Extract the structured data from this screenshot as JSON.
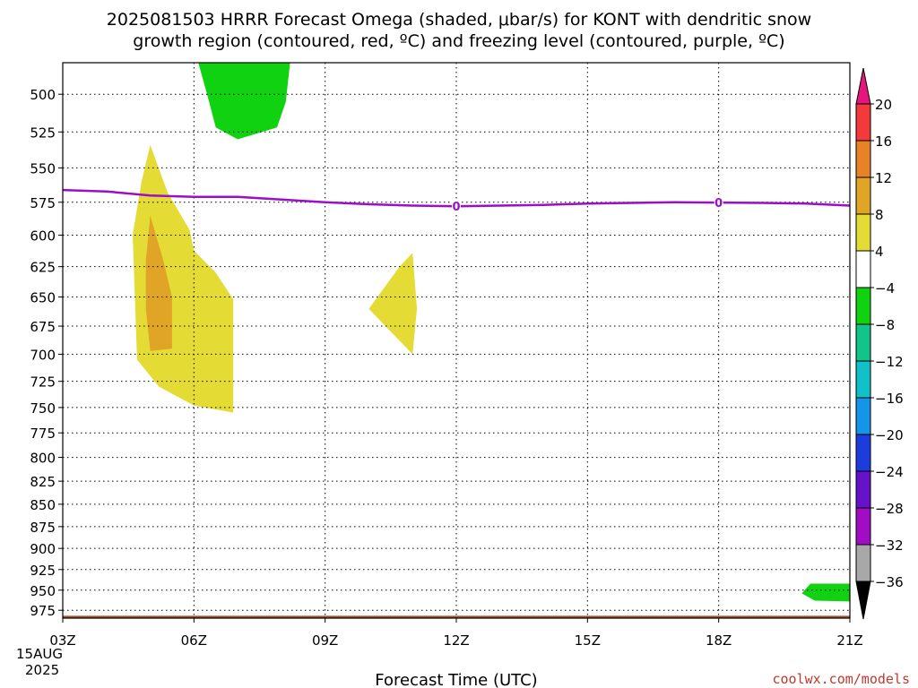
{
  "chart_data": {
    "type": "heatmap",
    "title_line1": "2025081503 HRRR Forecast Omega (shaded, μbar/s) for KONT with dendritic snow",
    "title_line2": "growth region (contoured, red, ºC) and freezing level (contoured, purple, ºC)",
    "xlabel": "Forecast Time (UTC)",
    "x_start_date_day": "15AUG",
    "x_start_date_year": "2025",
    "x_ticks": [
      "03Z",
      "06Z",
      "09Z",
      "12Z",
      "15Z",
      "18Z",
      "21Z"
    ],
    "x_hours": [
      3,
      6,
      9,
      12,
      15,
      18,
      21
    ],
    "xlim": [
      3,
      21
    ],
    "y_ticks": [
      500,
      525,
      550,
      575,
      600,
      625,
      650,
      675,
      700,
      725,
      750,
      775,
      800,
      825,
      850,
      875,
      900,
      925,
      950,
      975
    ],
    "ylim": [
      480,
      985
    ],
    "y_scale": "log",
    "grid": true,
    "colorbar": {
      "labels": [
        "20",
        "16",
        "12",
        "8",
        "4",
        "−4",
        "−8",
        "−12",
        "−16",
        "−20",
        "−24",
        "−28",
        "−32",
        "−36"
      ],
      "bands": [
        {
          "lo": 20,
          "hi": null,
          "color": "#e6157e"
        },
        {
          "lo": 16,
          "hi": 20,
          "color": "#f23a3a"
        },
        {
          "lo": 12,
          "hi": 16,
          "color": "#e88227"
        },
        {
          "lo": 8,
          "hi": 12,
          "color": "#e0a526"
        },
        {
          "lo": 4,
          "hi": 8,
          "color": "#e4dc35"
        },
        {
          "lo": -4,
          "hi": 4,
          "color": "#ffffff"
        },
        {
          "lo": -8,
          "hi": -4,
          "color": "#11d211"
        },
        {
          "lo": -12,
          "hi": -8,
          "color": "#13c48a"
        },
        {
          "lo": -16,
          "hi": -12,
          "color": "#11c0c8"
        },
        {
          "lo": -20,
          "hi": -16,
          "color": "#1595e8"
        },
        {
          "lo": -24,
          "hi": -20,
          "color": "#1e3bdc"
        },
        {
          "lo": -28,
          "hi": -24,
          "color": "#6512c9"
        },
        {
          "lo": -32,
          "hi": -28,
          "color": "#a00dc4"
        },
        {
          "lo": -36,
          "hi": -32,
          "color": "#a8a8a8"
        },
        {
          "lo": null,
          "hi": -36,
          "color": "#000000"
        }
      ]
    },
    "shaded_regions": [
      {
        "name": "Omega -4 to -8 upper",
        "color": "#11d211",
        "points": [
          [
            6.1,
            480
          ],
          [
            8.2,
            480
          ],
          [
            8.1,
            505
          ],
          [
            7.9,
            522
          ],
          [
            7.0,
            530
          ],
          [
            6.5,
            522
          ],
          [
            6.3,
            500
          ]
        ]
      },
      {
        "name": "Omega 4 to 8 main",
        "color": "#e4dc35",
        "points": [
          [
            5.0,
            534
          ],
          [
            5.4,
            568
          ],
          [
            5.9,
            596
          ],
          [
            6.0,
            612
          ],
          [
            6.5,
            630
          ],
          [
            6.9,
            652
          ],
          [
            6.9,
            745
          ],
          [
            6.9,
            755
          ],
          [
            6.0,
            748
          ],
          [
            5.2,
            730
          ],
          [
            4.7,
            705
          ],
          [
            4.6,
            600
          ],
          [
            4.8,
            560
          ]
        ]
      },
      {
        "name": "Omega 8 to 12 core",
        "color": "#e0a526",
        "points": [
          [
            5.0,
            585
          ],
          [
            5.3,
            620
          ],
          [
            5.5,
            650
          ],
          [
            5.5,
            695
          ],
          [
            5.0,
            697
          ],
          [
            4.9,
            660
          ],
          [
            4.9,
            620
          ]
        ]
      },
      {
        "name": "Omega 4 to 8 mid",
        "color": "#e4dc35",
        "points": [
          [
            11.0,
            614
          ],
          [
            11.1,
            660
          ],
          [
            11.0,
            700
          ],
          [
            10.0,
            660
          ],
          [
            10.7,
            625
          ]
        ]
      },
      {
        "name": "Omega -4 to -8 lower",
        "color": "#11d211",
        "points": [
          [
            20.1,
            942
          ],
          [
            21.0,
            942
          ],
          [
            21.0,
            964
          ],
          [
            20.2,
            963
          ],
          [
            19.9,
            954
          ]
        ]
      }
    ],
    "freezing_level": {
      "label": "0",
      "color": "#9b0fcb",
      "points": [
        [
          3.0,
          566
        ],
        [
          4.0,
          567
        ],
        [
          5.0,
          570
        ],
        [
          6.0,
          571
        ],
        [
          7.0,
          571
        ],
        [
          8.0,
          573
        ],
        [
          9.0,
          575
        ],
        [
          10.0,
          576.5
        ],
        [
          11.0,
          577.5
        ],
        [
          12.0,
          578
        ],
        [
          13.0,
          577.5
        ],
        [
          14.0,
          577
        ],
        [
          15.0,
          576
        ],
        [
          16.0,
          575.5
        ],
        [
          17.0,
          575
        ],
        [
          18.0,
          575.2
        ],
        [
          19.0,
          575.5
        ],
        [
          20.0,
          576
        ],
        [
          21.0,
          577.5
        ]
      ],
      "label_at_hours": [
        12.0,
        18.0
      ]
    },
    "surface_terrain": {
      "color": "#a0522d",
      "level": 982
    }
  },
  "watermark": "coolwx.com/models"
}
